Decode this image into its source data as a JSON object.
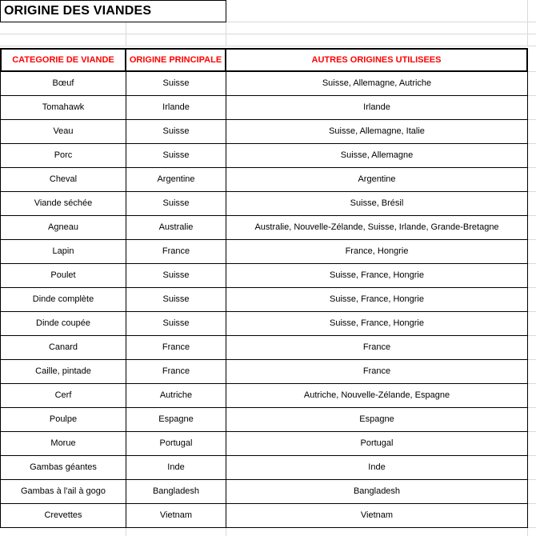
{
  "title": "ORIGINE DES VIANDES",
  "table": {
    "headers": [
      "CATEGORIE DE VIANDE",
      "ORIGINE PRINCIPALE",
      "AUTRES ORIGINES UTILISEES"
    ],
    "rows": [
      {
        "categorie": "Bœuf",
        "origine_principale": "Suisse",
        "autres_origines": "Suisse, Allemagne, Autriche"
      },
      {
        "categorie": "Tomahawk",
        "origine_principale": "Irlande",
        "autres_origines": "Irlande"
      },
      {
        "categorie": "Veau",
        "origine_principale": "Suisse",
        "autres_origines": "Suisse, Allemagne, Italie"
      },
      {
        "categorie": "Porc",
        "origine_principale": "Suisse",
        "autres_origines": "Suisse, Allemagne"
      },
      {
        "categorie": "Cheval",
        "origine_principale": "Argentine",
        "autres_origines": "Argentine"
      },
      {
        "categorie": "Viande séchée",
        "origine_principale": "Suisse",
        "autres_origines": "Suisse, Brésil"
      },
      {
        "categorie": "Agneau",
        "origine_principale": "Australie",
        "autres_origines": "Australie, Nouvelle-Zélande, Suisse, Irlande, Grande-Bretagne"
      },
      {
        "categorie": "Lapin",
        "origine_principale": "France",
        "autres_origines": "France, Hongrie"
      },
      {
        "categorie": "Poulet",
        "origine_principale": "Suisse",
        "autres_origines": "Suisse, France, Hongrie"
      },
      {
        "categorie": "Dinde complète",
        "origine_principale": "Suisse",
        "autres_origines": "Suisse, France, Hongrie"
      },
      {
        "categorie": "Dinde coupée",
        "origine_principale": "Suisse",
        "autres_origines": "Suisse, France, Hongrie"
      },
      {
        "categorie": "Canard",
        "origine_principale": "France",
        "autres_origines": "France"
      },
      {
        "categorie": "Caille, pintade",
        "origine_principale": "France",
        "autres_origines": "France"
      },
      {
        "categorie": "Cerf",
        "origine_principale": "Autriche",
        "autres_origines": "Autriche, Nouvelle-Zélande, Espagne"
      },
      {
        "categorie": "Poulpe",
        "origine_principale": "Espagne",
        "autres_origines": "Espagne"
      },
      {
        "categorie": "Morue",
        "origine_principale": "Portugal",
        "autres_origines": "Portugal"
      },
      {
        "categorie": "Gambas géantes",
        "origine_principale": "Inde",
        "autres_origines": "Inde"
      },
      {
        "categorie": "Gambas à l'ail à gogo",
        "origine_principale": "Bangladesh",
        "autres_origines": "Bangladesh"
      },
      {
        "categorie": "Crevettes",
        "origine_principale": "Vietnam",
        "autres_origines": "Vietnam"
      }
    ]
  },
  "colors": {
    "header_text": "#ff0000",
    "cell_border": "#000000",
    "gridline": "#d9d9d9"
  }
}
